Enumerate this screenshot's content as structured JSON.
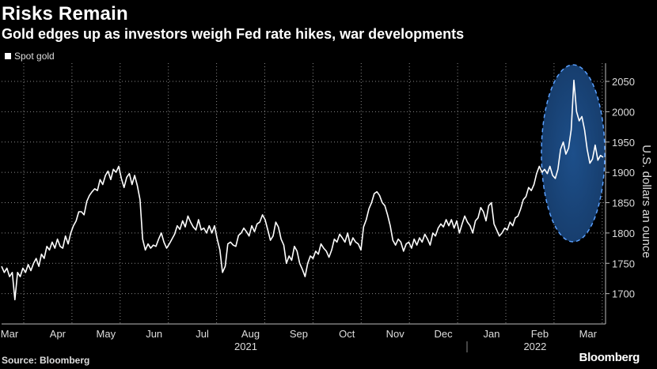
{
  "title": "Risks Remain",
  "subtitle": "Gold edges up as investors weigh Fed rate hikes, war developments",
  "legend": [
    {
      "label": "Spot gold",
      "color": "#ffffff"
    }
  ],
  "source": "Source: Bloomberg",
  "brand": "Bloomberg",
  "chart_data": {
    "type": "line",
    "xlabel": "",
    "ylabel": "U.S. dollars an ounce",
    "ylim": [
      1650,
      2080
    ],
    "yticks": [
      1700,
      1750,
      1800,
      1850,
      1900,
      1950,
      2000,
      2050
    ],
    "month_labels": [
      "Mar",
      "Apr",
      "May",
      "Jun",
      "Jul",
      "Aug",
      "Sep",
      "Oct",
      "Nov",
      "Dec",
      "Jan",
      "Feb",
      "Mar"
    ],
    "year_labels": [
      {
        "label": "2021",
        "month_index": 5
      },
      {
        "label": "2022",
        "month_index": 11
      }
    ],
    "grid": true,
    "highlight": "dashed blue ellipse around late Feb – Mar 2022 spike",
    "series": [
      {
        "name": "Spot gold",
        "color": "#ffffff",
        "values": [
          1745,
          1735,
          1742,
          1728,
          1735,
          1690,
          1735,
          1728,
          1742,
          1735,
          1748,
          1738,
          1750,
          1758,
          1745,
          1765,
          1758,
          1778,
          1772,
          1785,
          1775,
          1790,
          1778,
          1775,
          1795,
          1782,
          1800,
          1812,
          1820,
          1835,
          1835,
          1830,
          1852,
          1862,
          1868,
          1873,
          1870,
          1888,
          1880,
          1895,
          1902,
          1888,
          1905,
          1900,
          1910,
          1890,
          1875,
          1892,
          1898,
          1880,
          1895,
          1878,
          1855,
          1790,
          1772,
          1782,
          1775,
          1780,
          1778,
          1790,
          1800,
          1785,
          1775,
          1782,
          1790,
          1798,
          1812,
          1806,
          1820,
          1810,
          1828,
          1818,
          1810,
          1805,
          1822,
          1805,
          1808,
          1800,
          1812,
          1800,
          1812,
          1790,
          1772,
          1735,
          1745,
          1782,
          1785,
          1780,
          1778,
          1796,
          1800,
          1808,
          1802,
          1795,
          1812,
          1802,
          1815,
          1818,
          1830,
          1822,
          1805,
          1788,
          1795,
          1818,
          1810,
          1790,
          1780,
          1750,
          1762,
          1755,
          1778,
          1770,
          1750,
          1740,
          1728,
          1750,
          1762,
          1758,
          1770,
          1765,
          1782,
          1775,
          1770,
          1760,
          1772,
          1790,
          1785,
          1798,
          1792,
          1785,
          1800,
          1780,
          1792,
          1785,
          1782,
          1772,
          1810,
          1822,
          1840,
          1850,
          1865,
          1868,
          1862,
          1850,
          1845,
          1830,
          1812,
          1788,
          1780,
          1790,
          1785,
          1770,
          1782,
          1785,
          1775,
          1790,
          1780,
          1792,
          1785,
          1798,
          1790,
          1780,
          1800,
          1795,
          1808,
          1815,
          1810,
          1822,
          1812,
          1822,
          1808,
          1820,
          1800,
          1815,
          1828,
          1818,
          1812,
          1800,
          1820,
          1825,
          1842,
          1835,
          1820,
          1845,
          1850,
          1815,
          1805,
          1795,
          1800,
          1808,
          1805,
          1818,
          1812,
          1825,
          1828,
          1840,
          1855,
          1860,
          1875,
          1870,
          1880,
          1898,
          1910,
          1900,
          1905,
          1898,
          1910,
          1895,
          1890,
          1905,
          1938,
          1950,
          1930,
          1940,
          1970,
          2052,
          2000,
          1985,
          1992,
          1970,
          1938,
          1915,
          1922,
          1945,
          1920,
          1928,
          1925
        ]
      }
    ]
  }
}
